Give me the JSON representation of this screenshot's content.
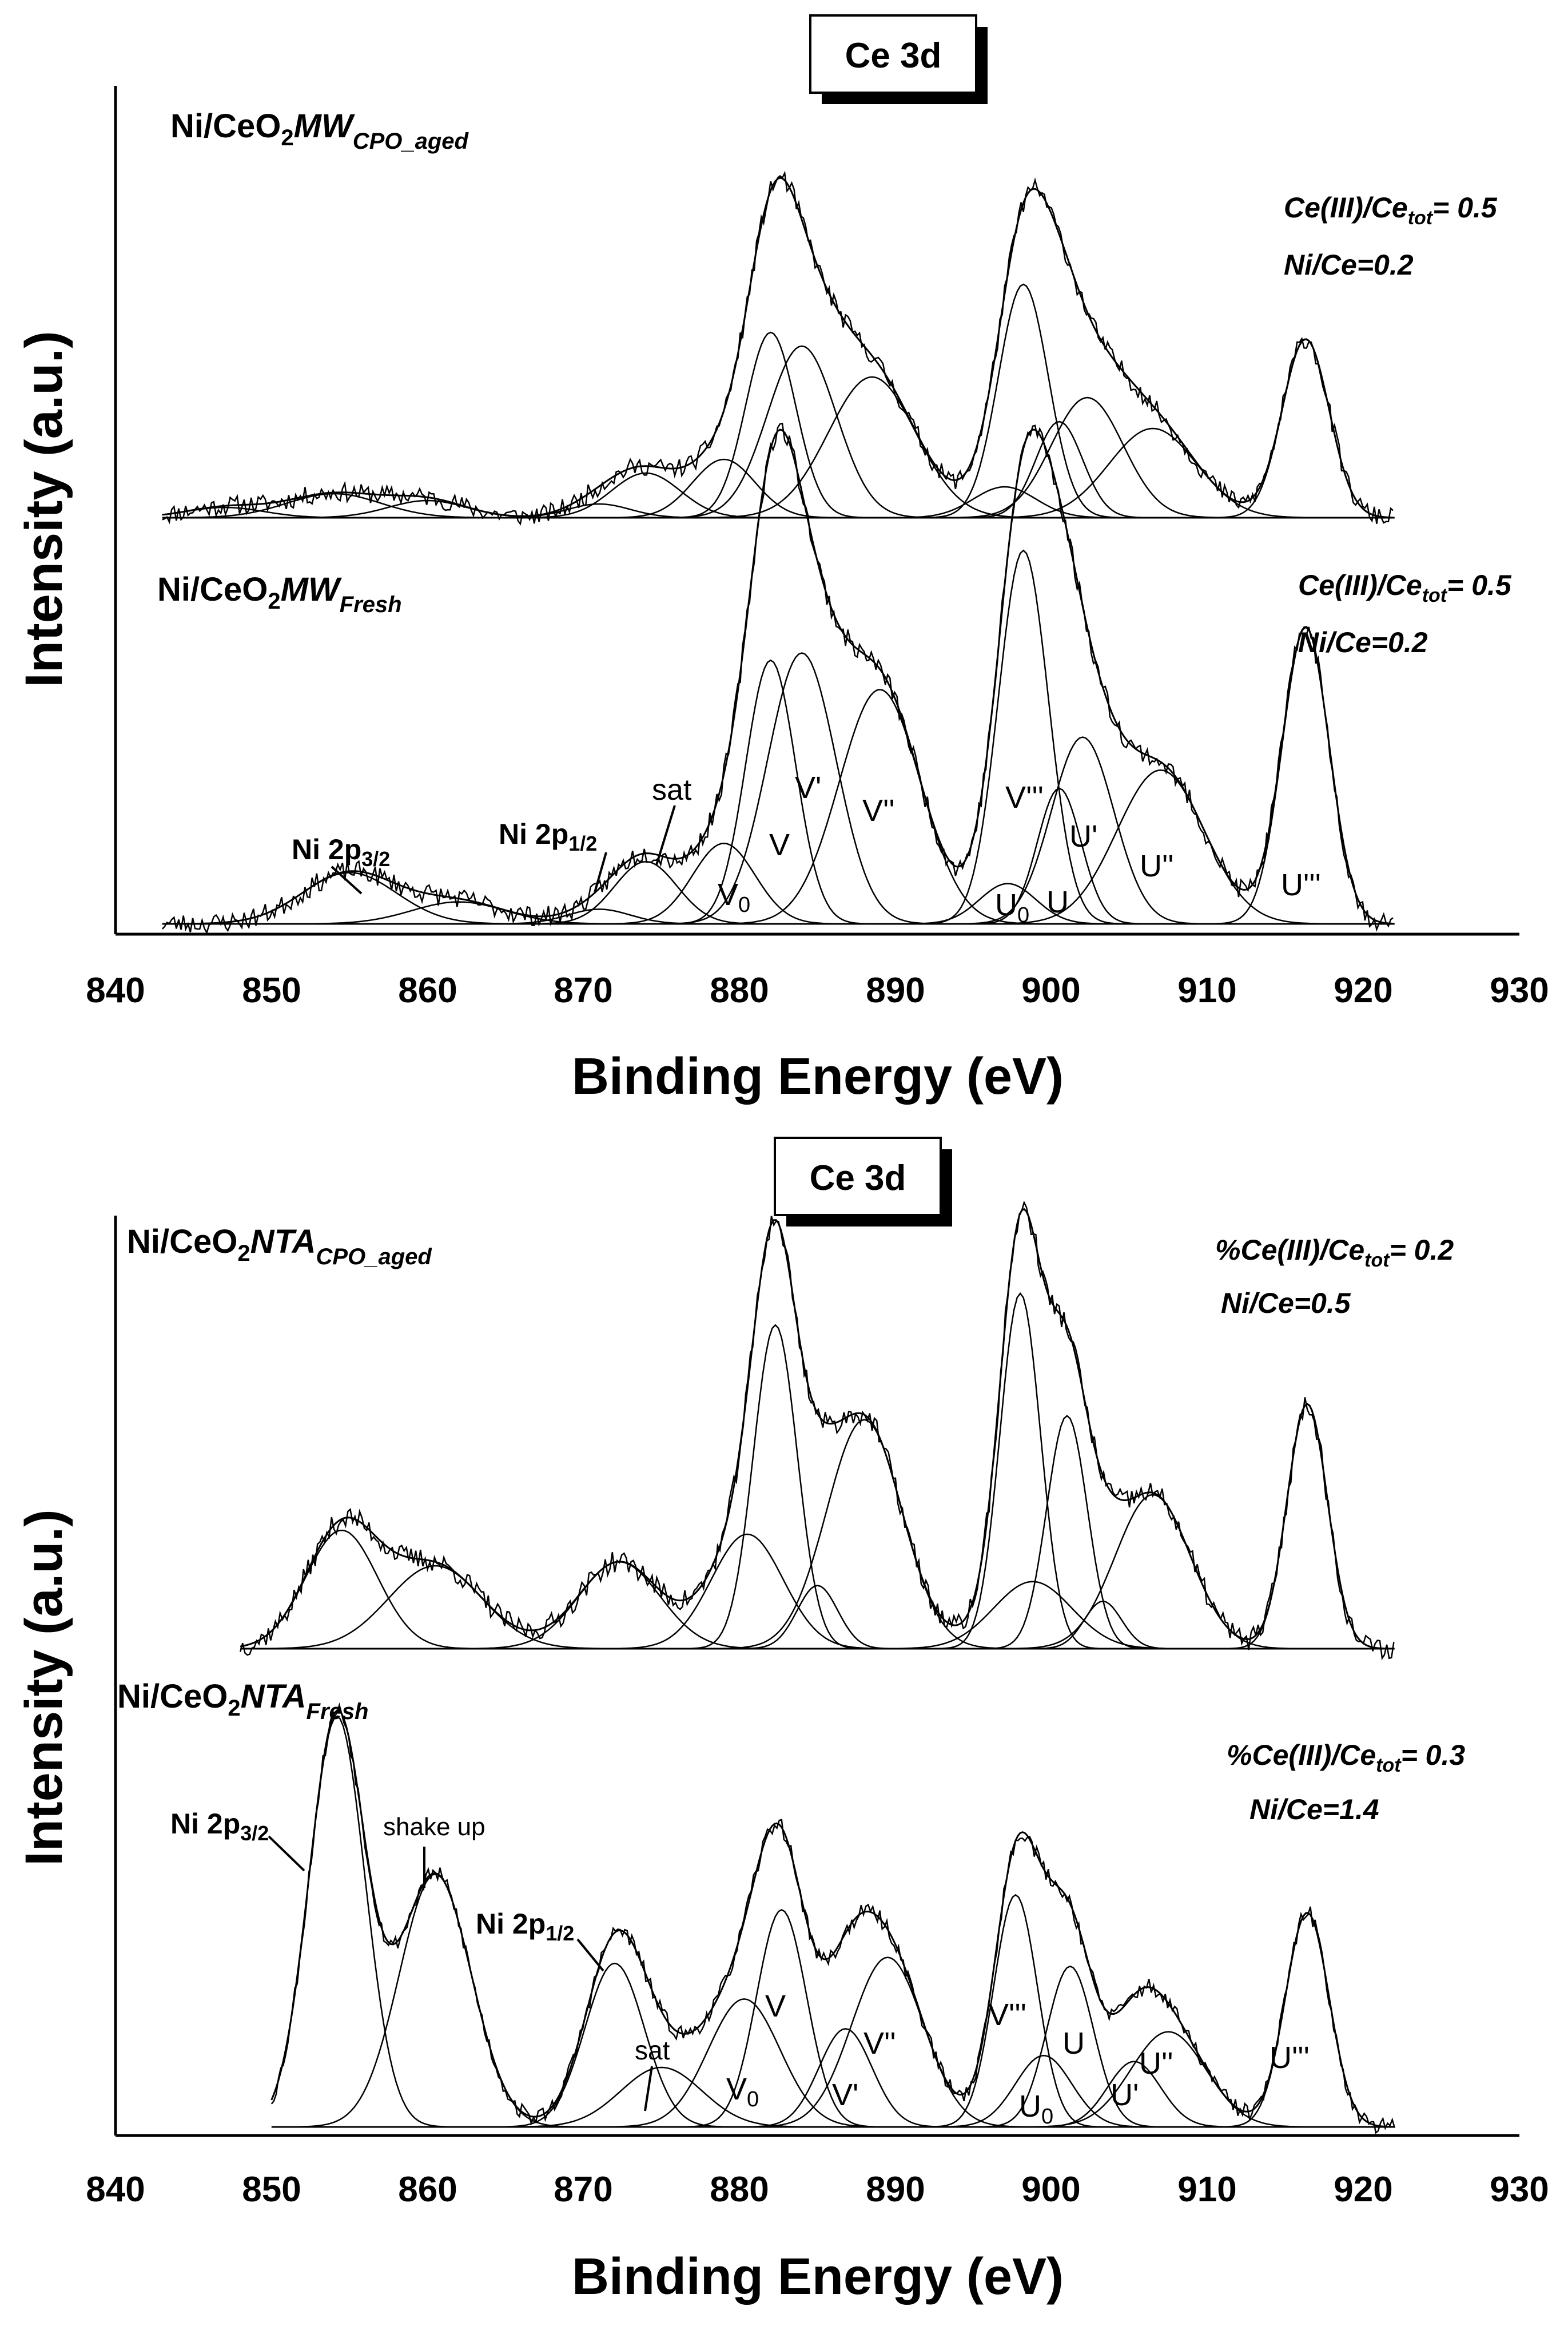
{
  "figure": {
    "panels": [
      {
        "id": "top",
        "box_label": "Ce 3d",
        "xlabel": "Binding Energy (eV)",
        "ylabel": "Intensity (a.u.)",
        "xlim": [
          840,
          930
        ],
        "xticks": [
          "840",
          "850",
          "860",
          "870",
          "880",
          "890",
          "900",
          "910",
          "920",
          "930"
        ],
        "spectra": [
          {
            "id": "top-aged",
            "name_main": "Ni/CeO",
            "name_sub": "2",
            "name_ital": "MW",
            "name_suffix": "CPO_aged",
            "info_line1_pre": "Ce(III)/Ce",
            "info_line1_sub": "tot",
            "info_line1_post": "= 0.5",
            "info_line2": "Ni/Ce=0.2",
            "peak_labels": []
          },
          {
            "id": "top-fresh",
            "name_main": "Ni/CeO",
            "name_sub": "2",
            "name_ital": "MW",
            "name_suffix": "Fresh",
            "info_line1_pre": "Ce(III)/Ce",
            "info_line1_sub": "tot",
            "info_line1_post": "= 0.5",
            "info_line2": "Ni/Ce=0.2",
            "peak_labels": [
              "Ni 2p3/2",
              "Ni 2p1/2",
              "sat",
              "V0",
              "V",
              "V'",
              "V''",
              "V'''",
              "U0",
              "U",
              "U'",
              "U''",
              "U'''"
            ]
          }
        ]
      },
      {
        "id": "bottom",
        "box_label": "Ce 3d",
        "xlabel": "Binding Energy (eV)",
        "ylabel": "Intensity (a.u.)",
        "xlim": [
          840,
          930
        ],
        "xticks": [
          "840",
          "850",
          "860",
          "870",
          "880",
          "890",
          "900",
          "910",
          "920",
          "930"
        ],
        "spectra": [
          {
            "id": "bottom-aged",
            "name_main": "Ni/CeO",
            "name_sub": "2",
            "name_ital": "NTA",
            "name_suffix": "CPO_aged",
            "info_line1_pre": "%Ce(III)/Ce",
            "info_line1_sub": "tot",
            "info_line1_post": "= 0.2",
            "info_line2": "Ni/Ce=0.5",
            "peak_labels": []
          },
          {
            "id": "bottom-fresh",
            "name_main": "Ni/CeO",
            "name_sub": "2",
            "name_ital": "NTA",
            "name_suffix": "Fresh",
            "info_line1_pre": "%Ce(III)/Ce",
            "info_line1_sub": "tot",
            "info_line1_post": "= 0.3",
            "info_line2": "Ni/Ce=1.4",
            "peak_labels": [
              "Ni 2p3/2",
              "shake up",
              "Ni 2p1/2",
              "sat",
              "V0",
              "V",
              "V'",
              "V''",
              "V'''",
              "U0",
              "U",
              "U'",
              "U''",
              "U'''"
            ]
          }
        ]
      }
    ]
  },
  "chart_data": [
    {
      "type": "line",
      "title": "Ce 3d",
      "xlabel": "Binding Energy (eV)",
      "ylabel": "Intensity (a.u.)",
      "xlim": [
        840,
        930
      ],
      "series": [
        {
          "name": "Ni/CeO2 MW CPO_aged",
          "x_range": [
            843,
            922
          ],
          "peaks": [
            {
              "center": 847,
              "height": 0.03,
              "width": 2.5
            },
            {
              "center": 854,
              "height": 0.07,
              "width": 3.0
            },
            {
              "center": 860,
              "height": 0.05,
              "width": 2.5
            },
            {
              "center": 871,
              "height": 0.04,
              "width": 2.0
            },
            {
              "center": 874,
              "height": 0.13,
              "width": 2.2
            },
            {
              "center": 879,
              "height": 0.17,
              "width": 2.0
            },
            {
              "center": 882,
              "height": 0.54,
              "width": 1.6
            },
            {
              "center": 884,
              "height": 0.5,
              "width": 2.2
            },
            {
              "center": 888.5,
              "height": 0.41,
              "width": 2.8
            },
            {
              "center": 897,
              "height": 0.09,
              "width": 2.0
            },
            {
              "center": 898.2,
              "height": 0.68,
              "width": 1.6
            },
            {
              "center": 900.5,
              "height": 0.28,
              "width": 1.5
            },
            {
              "center": 902.3,
              "height": 0.35,
              "width": 2.3
            },
            {
              "center": 906.5,
              "height": 0.26,
              "width": 2.8
            },
            {
              "center": 916.3,
              "height": 0.52,
              "width": 1.5
            }
          ]
        },
        {
          "name": "Ni/CeO2 MW Fresh",
          "x_range": [
            843,
            922
          ],
          "peaks": [
            {
              "center": 855,
              "height": 0.14,
              "width": 3.0
            },
            {
              "center": 862,
              "height": 0.06,
              "width": 3.0
            },
            {
              "center": 871,
              "height": 0.04,
              "width": 2.0
            },
            {
              "center": 874,
              "height": 0.17,
              "width": 2.0
            },
            {
              "center": 879,
              "height": 0.22,
              "width": 2.0
            },
            {
              "center": 882,
              "height": 0.72,
              "width": 1.6
            },
            {
              "center": 884,
              "height": 0.74,
              "width": 2.2
            },
            {
              "center": 889,
              "height": 0.64,
              "width": 2.6
            },
            {
              "center": 897.2,
              "height": 0.11,
              "width": 1.8
            },
            {
              "center": 898.2,
              "height": 1.02,
              "width": 1.6
            },
            {
              "center": 900.5,
              "height": 0.37,
              "width": 1.4
            },
            {
              "center": 902,
              "height": 0.51,
              "width": 2.0
            },
            {
              "center": 907,
              "height": 0.42,
              "width": 2.8
            },
            {
              "center": 916.3,
              "height": 0.81,
              "width": 1.5
            }
          ]
        }
      ]
    },
    {
      "type": "line",
      "title": "Ce 3d",
      "xlabel": "Binding Energy (eV)",
      "ylabel": "Intensity (a.u.)",
      "xlim": [
        840,
        930
      ],
      "series": [
        {
          "name": "Ni/CeO2 NTA CPO_aged",
          "x_range": [
            848,
            922
          ],
          "peaks": [
            {
              "center": 854.5,
              "height": 0.3,
              "width": 2.3
            },
            {
              "center": 860.5,
              "height": 0.21,
              "width": 3.0
            },
            {
              "center": 872.3,
              "height": 0.22,
              "width": 2.6
            },
            {
              "center": 880.5,
              "height": 0.29,
              "width": 2.3
            },
            {
              "center": 882.3,
              "height": 0.82,
              "width": 1.4
            },
            {
              "center": 885,
              "height": 0.16,
              "width": 1.3
            },
            {
              "center": 888,
              "height": 0.58,
              "width": 2.4
            },
            {
              "center": 898,
              "height": 0.9,
              "width": 1.3
            },
            {
              "center": 898.8,
              "height": 0.17,
              "width": 2.5
            },
            {
              "center": 901,
              "height": 0.59,
              "width": 1.3
            },
            {
              "center": 903.3,
              "height": 0.12,
              "width": 1.2
            },
            {
              "center": 906.5,
              "height": 0.39,
              "width": 2.4
            },
            {
              "center": 916.4,
              "height": 0.62,
              "width": 1.3
            }
          ]
        },
        {
          "name": "Ni/CeO2 NTA Fresh",
          "x_range": [
            850,
            922
          ],
          "peaks": [
            {
              "center": 854.2,
              "height": 1.38,
              "width": 1.8
            },
            {
              "center": 860.5,
              "height": 0.85,
              "width": 2.3
            },
            {
              "center": 872,
              "height": 0.55,
              "width": 1.9
            },
            {
              "center": 875,
              "height": 0.2,
              "width": 2.6
            },
            {
              "center": 880.3,
              "height": 0.43,
              "width": 2.3
            },
            {
              "center": 882.7,
              "height": 0.73,
              "width": 1.6
            },
            {
              "center": 886.8,
              "height": 0.33,
              "width": 1.7
            },
            {
              "center": 889.5,
              "height": 0.57,
              "width": 2.3
            },
            {
              "center": 897.7,
              "height": 0.78,
              "width": 1.4
            },
            {
              "center": 899.5,
              "height": 0.24,
              "width": 1.8
            },
            {
              "center": 901.2,
              "height": 0.54,
              "width": 1.5
            },
            {
              "center": 905.3,
              "height": 0.22,
              "width": 1.7
            },
            {
              "center": 907.5,
              "height": 0.32,
              "width": 2.4
            },
            {
              "center": 916.4,
              "height": 0.72,
              "width": 1.4
            }
          ]
        }
      ]
    }
  ]
}
